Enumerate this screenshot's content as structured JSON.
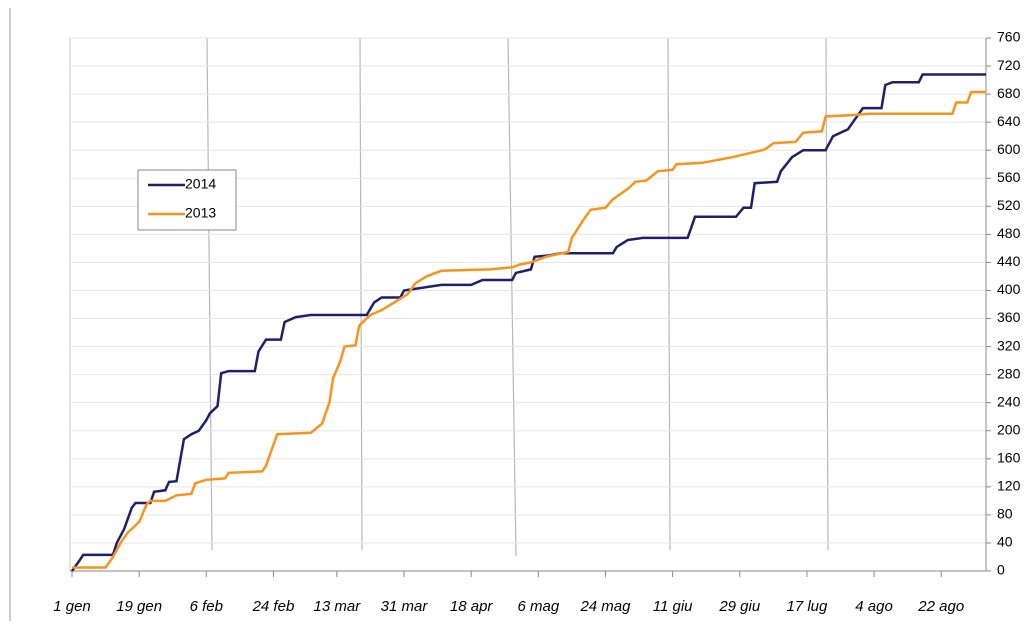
{
  "chart_data": {
    "type": "line",
    "xlim": [
      1,
      246
    ],
    "ylim": [
      0,
      760
    ],
    "xticks": [
      {
        "value": 1,
        "label": "1 gen"
      },
      {
        "value": 19,
        "label": "19 gen"
      },
      {
        "value": 37,
        "label": "6 feb"
      },
      {
        "value": 55,
        "label": "24 feb"
      },
      {
        "value": 72,
        "label": "13 mar"
      },
      {
        "value": 90,
        "label": "31 mar"
      },
      {
        "value": 108,
        "label": "18 apr"
      },
      {
        "value": 126,
        "label": "6 mag"
      },
      {
        "value": 144,
        "label": "24 mag"
      },
      {
        "value": 162,
        "label": "11 giu"
      },
      {
        "value": 180,
        "label": "29 giu"
      },
      {
        "value": 198,
        "label": "17 lug"
      },
      {
        "value": 216,
        "label": "4 ago"
      },
      {
        "value": 234,
        "label": "22 ago"
      }
    ],
    "yticks": [
      0,
      40,
      80,
      120,
      160,
      200,
      240,
      280,
      320,
      360,
      400,
      440,
      480,
      520,
      560,
      600,
      640,
      680,
      720,
      760
    ],
    "grid": true,
    "legend": "upper left",
    "series": [
      {
        "name": "2014",
        "color": "#1f1f6b",
        "x": [
          1,
          3,
          4,
          12,
          13,
          15,
          17,
          18,
          22,
          23,
          26,
          27,
          29,
          31,
          33,
          35,
          37,
          38,
          40,
          41,
          43,
          50,
          51,
          53,
          57,
          58,
          61,
          65,
          80,
          82,
          84,
          89,
          90,
          100,
          108,
          111,
          119,
          120,
          124,
          125,
          129,
          132,
          146,
          147,
          150,
          154,
          166,
          167,
          168,
          179,
          181,
          183,
          184,
          190,
          191,
          194,
          197,
          203,
          205,
          209,
          211,
          213,
          218,
          219,
          221,
          228,
          229,
          246
        ],
        "values": [
          0,
          15,
          23,
          23,
          40,
          60,
          90,
          97,
          97,
          113,
          115,
          127,
          128,
          188,
          195,
          200,
          215,
          225,
          235,
          282,
          285,
          285,
          313,
          330,
          330,
          355,
          362,
          365,
          365,
          383,
          390,
          390,
          400,
          408,
          408,
          415,
          415,
          425,
          430,
          448,
          450,
          453,
          453,
          462,
          472,
          475,
          475,
          490,
          505,
          505,
          518,
          518,
          553,
          555,
          570,
          590,
          600,
          600,
          620,
          630,
          645,
          660,
          660,
          693,
          697,
          697,
          708,
          708
        ]
      },
      {
        "name": "2013",
        "color": "#f7941d",
        "x": [
          1,
          10,
          12,
          14,
          16,
          19,
          21,
          22,
          26,
          29,
          33,
          34,
          37,
          42,
          43,
          52,
          53,
          56,
          65,
          68,
          70,
          71,
          73,
          74,
          77,
          78,
          81,
          84,
          88,
          91,
          93,
          96,
          100,
          113,
          119,
          121,
          124,
          128,
          134,
          135,
          138,
          140,
          144,
          146,
          150,
          152,
          155,
          158,
          162,
          163,
          170,
          178,
          186,
          187,
          189,
          195,
          197,
          202,
          203,
          210,
          215,
          237,
          238,
          241,
          242,
          246
        ],
        "values": [
          5,
          5,
          20,
          40,
          55,
          70,
          95,
          100,
          100,
          108,
          110,
          125,
          130,
          132,
          140,
          142,
          150,
          195,
          197,
          210,
          240,
          275,
          300,
          320,
          322,
          350,
          365,
          372,
          385,
          395,
          410,
          420,
          428,
          430,
          433,
          437,
          440,
          448,
          455,
          475,
          500,
          515,
          518,
          530,
          545,
          555,
          557,
          570,
          572,
          580,
          582,
          590,
          600,
          602,
          610,
          612,
          625,
          627,
          648,
          650,
          652,
          652,
          668,
          668,
          683,
          683
        ]
      }
    ]
  }
}
